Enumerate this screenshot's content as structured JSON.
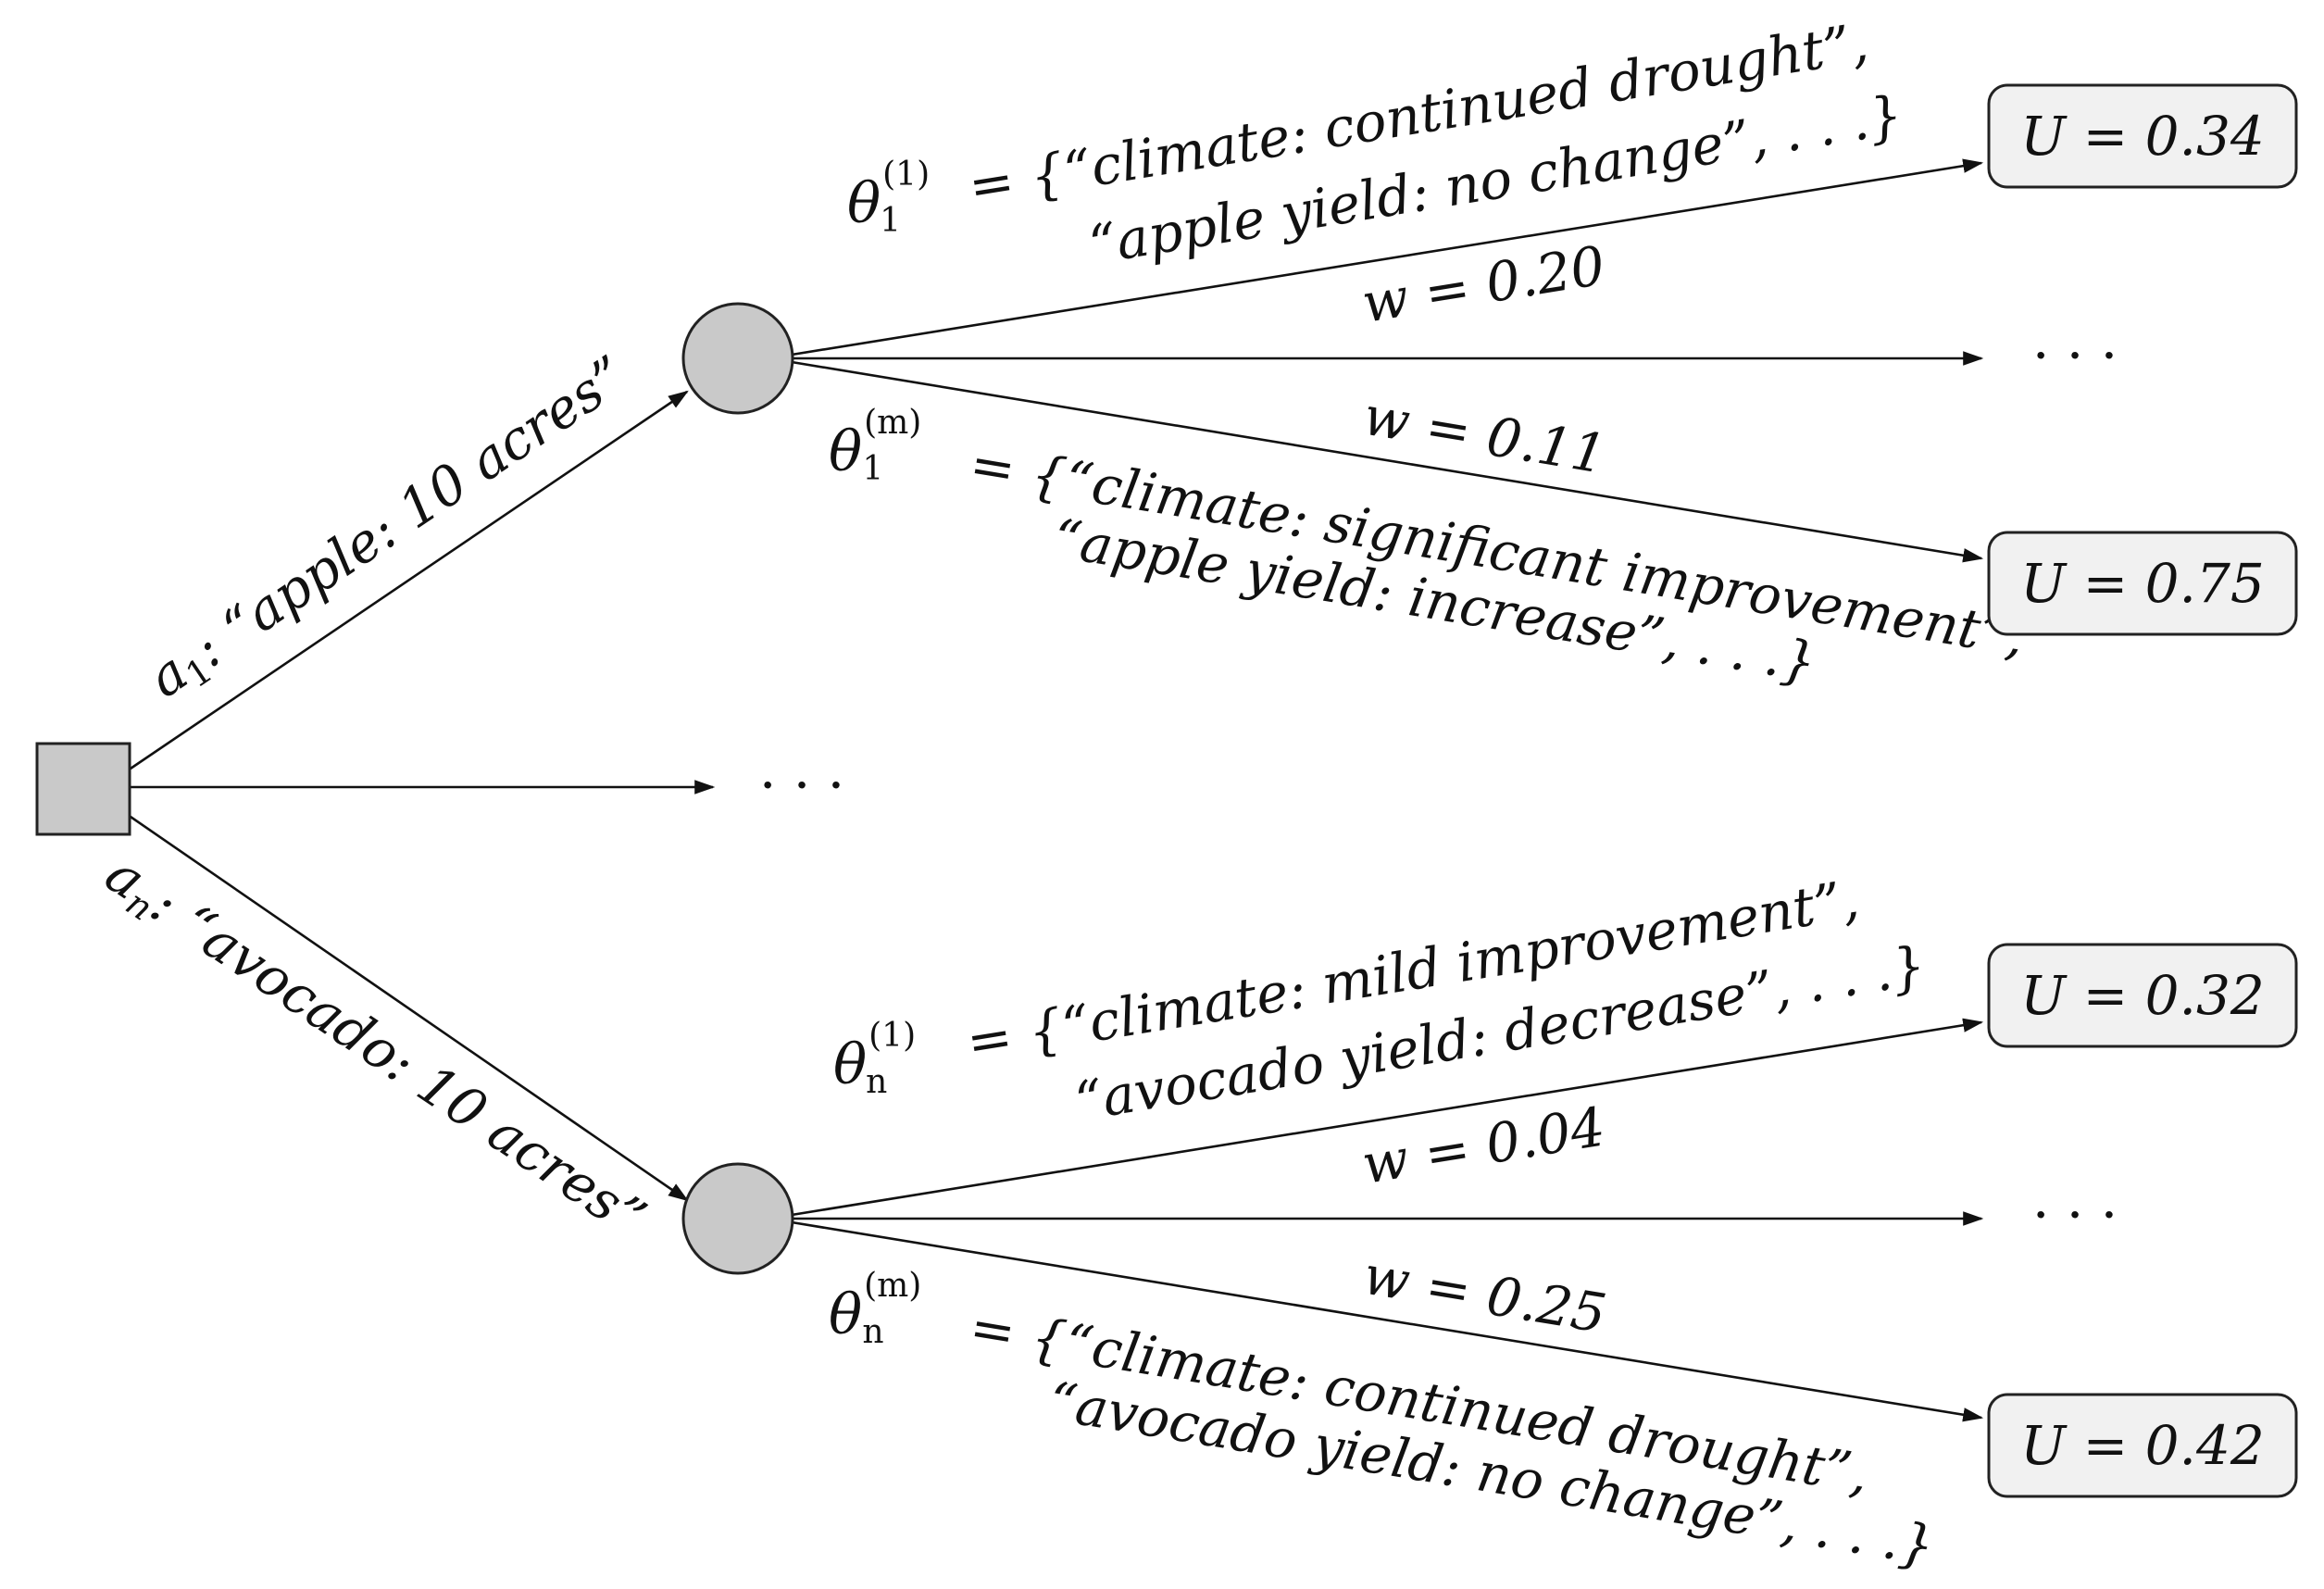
{
  "decision_node": {
    "shape": "square",
    "color": "#c9c9c9"
  },
  "chance_node_color": "#c9c9c9",
  "actions": [
    {
      "symbol": "a",
      "sub": "1",
      "label": ": “apple: 10 acres”",
      "outcomes": [
        {
          "theta_sub": "1",
          "theta_sup": "(1)",
          "line1": "= {“climate: continued drought”,",
          "line2": "“apple yield: no change”, . . .}",
          "weight": "w = 0.20",
          "utility": "U = 0.34"
        },
        {
          "theta_sub": "1",
          "theta_sup": "(m)",
          "line1": "= {“climate: significant improvement”,",
          "line2": "“apple yield: increase”, . . .}",
          "weight": "w = 0.11",
          "utility": "U = 0.75"
        }
      ]
    },
    {
      "symbol": "a",
      "sub": "n",
      "label": ": “avocado: 10 acres”",
      "outcomes": [
        {
          "theta_sub": "n",
          "theta_sup": "(1)",
          "line1": "= {“climate: mild improvement”,",
          "line2": "“avocado yield: decrease”, . . .}",
          "weight": "w = 0.04",
          "utility": "U = 0.32"
        },
        {
          "theta_sub": "n",
          "theta_sup": "(m)",
          "line1": "= {“climate: continued drought”,",
          "line2": "“avocado yield: no change”, . . .}",
          "weight": "w = 0.25",
          "utility": "U = 0.42"
        }
      ]
    }
  ],
  "ellipsis": "· · ·",
  "theta_symbol": "θ"
}
